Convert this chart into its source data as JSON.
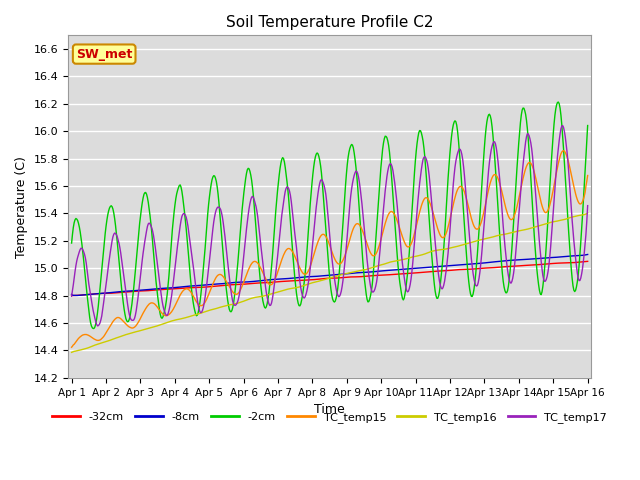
{
  "title": "Soil Temperature Profile C2",
  "xlabel": "Time",
  "ylabel": "Temperature (C)",
  "ylim": [
    14.2,
    16.7
  ],
  "background_color": "#dcdcdc",
  "figure_color": "#ffffff",
  "annotation_text": "SW_met",
  "annotation_color": "#cc0000",
  "annotation_bg": "#ffff99",
  "annotation_border": "#cc8800",
  "series": {
    "-32cm": {
      "color": "#ff0000",
      "lw": 1.0
    },
    "-8cm": {
      "color": "#0000cc",
      "lw": 1.0
    },
    "-2cm": {
      "color": "#00cc00",
      "lw": 1.0
    },
    "TC_temp15": {
      "color": "#ff8800",
      "lw": 1.0
    },
    "TC_temp16": {
      "color": "#cccc00",
      "lw": 1.0
    },
    "TC_temp17": {
      "color": "#9922bb",
      "lw": 1.0
    }
  },
  "xtick_labels": [
    "Apr 1",
    "Apr 2",
    "Apr 3",
    "Apr 4",
    "Apr 5",
    "Apr 6",
    "Apr 7",
    "Apr 8",
    "Apr 9",
    "Apr 10",
    "Apr 11",
    "Apr 12",
    "Apr 13",
    "Apr 14",
    "Apr 15",
    "Apr 16"
  ],
  "ytick_labels": [
    "14.2",
    "14.4",
    "14.6",
    "14.8",
    "15.0",
    "15.2",
    "15.4",
    "15.6",
    "15.8",
    "16.0",
    "16.2",
    "16.4",
    "16.6"
  ],
  "n_points": 600,
  "legend_order": [
    "-32cm",
    "-8cm",
    "-2cm",
    "TC_temp15",
    "TC_temp16",
    "TC_temp17"
  ]
}
